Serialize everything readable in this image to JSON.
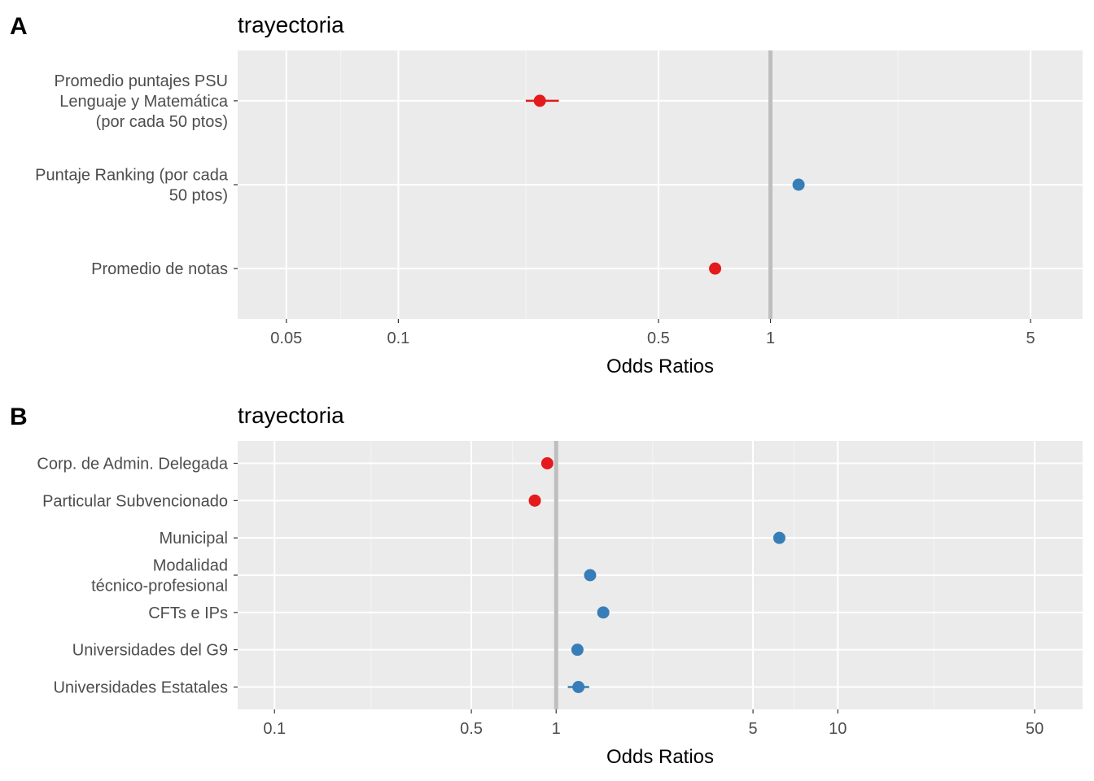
{
  "chart_data": [
    {
      "panel_label": "A",
      "type": "scatter",
      "subtype": "forest-plot",
      "title": "trayectoria",
      "xlabel": "Odds Ratios",
      "ylabel": "",
      "x_scale": "log",
      "xlim": [
        0.037,
        6.9
      ],
      "x_ticks": [
        0.05,
        0.1,
        0.5,
        1,
        5
      ],
      "x_tick_labels": [
        "0.05",
        "0.1",
        "0.5",
        "1",
        "5"
      ],
      "x_minor_ticks": [
        0.07,
        0.22,
        2.2
      ],
      "reference_line": 1,
      "grid": true,
      "terms": [
        {
          "label": "Promedio puntajes PSU\nLenguaje y Matemática\n(por cada 50 ptos)",
          "or": 0.24,
          "ci": [
            0.22,
            0.27
          ],
          "color": "#e41a1c"
        },
        {
          "label": "Puntaje Ranking (por cada\n50 ptos)",
          "or": 1.19,
          "ci": [
            1.17,
            1.21
          ],
          "color": "#377eb8"
        },
        {
          "label": "Promedio de notas",
          "or": 0.71,
          "ci": [
            0.7,
            0.72
          ],
          "color": "#e41a1c"
        }
      ]
    },
    {
      "panel_label": "B",
      "type": "scatter",
      "subtype": "forest-plot",
      "title": "trayectoria",
      "xlabel": "Odds Ratios",
      "ylabel": "",
      "x_scale": "log",
      "xlim": [
        0.074,
        74
      ],
      "x_ticks": [
        0.1,
        0.5,
        1,
        5,
        10,
        50
      ],
      "x_tick_labels": [
        "0.1",
        "0.5",
        "1",
        "5",
        "10",
        "50"
      ],
      "x_minor_ticks": [
        0.22,
        0.7,
        2.2,
        7,
        22
      ],
      "reference_line": 1,
      "grid": true,
      "terms": [
        {
          "label": "Corp. de Admin. Delegada",
          "or": 0.93,
          "ci": [
            0.91,
            0.95
          ],
          "color": "#e41a1c"
        },
        {
          "label": "Particular Subvencionado",
          "or": 0.84,
          "ci": [
            0.83,
            0.85
          ],
          "color": "#e41a1c"
        },
        {
          "label": "Municipal",
          "or": 6.2,
          "ci": [
            6.05,
            6.35
          ],
          "color": "#377eb8"
        },
        {
          "label": "Modalidad\ntécnico-profesional",
          "or": 1.32,
          "ci": [
            1.3,
            1.34
          ],
          "color": "#377eb8"
        },
        {
          "label": "CFTs e IPs",
          "or": 1.47,
          "ci": [
            1.45,
            1.49
          ],
          "color": "#377eb8"
        },
        {
          "label": "Universidades del G9",
          "or": 1.19,
          "ci": [
            1.17,
            1.21
          ],
          "color": "#377eb8"
        },
        {
          "label": "Universidades Estatales",
          "or": 1.2,
          "ci": [
            1.1,
            1.31
          ],
          "color": "#377eb8"
        }
      ]
    }
  ],
  "style": {
    "panel_background": "#ebebeb",
    "grid_major": "#ffffff",
    "grid_minor": "#f5f5f5",
    "reference_line_color": "#bebebe",
    "axis_text_color": "#4d4d4d",
    "positive_color": "#377eb8",
    "negative_color": "#e41a1c"
  }
}
